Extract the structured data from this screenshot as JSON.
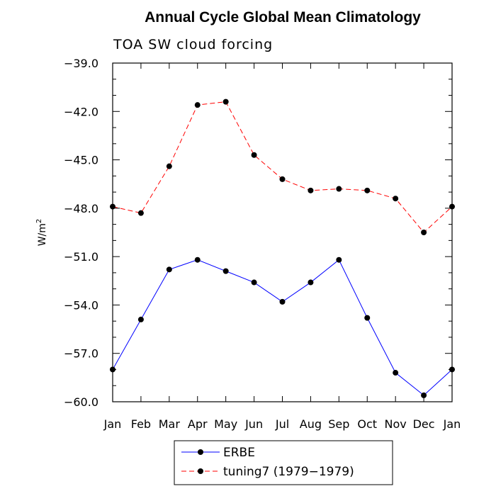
{
  "chart_data": {
    "type": "line",
    "title": "Annual Cycle Global Mean Climatology",
    "subtitle": "TOA SW cloud forcing",
    "xlabel": "",
    "ylabel": "W/m",
    "ylabel_sup": "2",
    "categories": [
      "Jan",
      "Feb",
      "Mar",
      "Apr",
      "May",
      "Jun",
      "Jul",
      "Aug",
      "Sep",
      "Oct",
      "Nov",
      "Dec",
      "Jan"
    ],
    "ylim": [
      -60.0,
      -39.0
    ],
    "yticks": [
      -39.0,
      -42.0,
      -45.0,
      -48.0,
      -51.0,
      -54.0,
      -57.0,
      -60.0
    ],
    "ytick_labels": [
      "−39.0",
      "−42.0",
      "−45.0",
      "−48.0",
      "−51.0",
      "−54.0",
      "−57.0",
      "−60.0"
    ],
    "legend_position": "bottom-center",
    "series": [
      {
        "name": "ERBE",
        "color": "#0000ff",
        "dash": "solid",
        "values": [
          -58.0,
          -54.9,
          -51.8,
          -51.2,
          -51.9,
          -52.6,
          -53.8,
          -52.6,
          -51.2,
          -54.8,
          -58.2,
          -59.6,
          -58.0
        ]
      },
      {
        "name": "tuning7 (1979−1979)",
        "color": "#ff0000",
        "dash": "dashed",
        "values": [
          -47.9,
          -48.3,
          -45.4,
          -41.6,
          -41.4,
          -44.7,
          -46.2,
          -46.9,
          -46.8,
          -46.9,
          -47.4,
          -49.5,
          -47.9
        ]
      }
    ]
  }
}
